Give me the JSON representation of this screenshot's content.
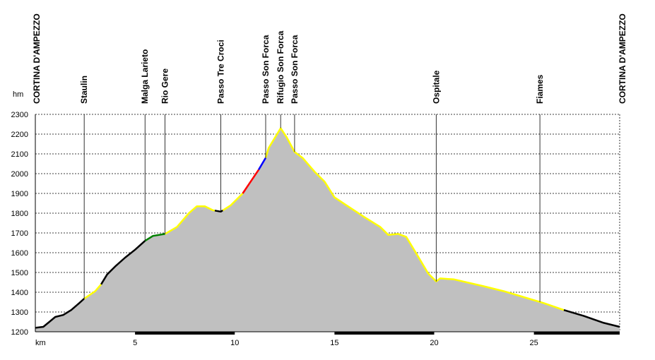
{
  "chart_data": {
    "type": "area",
    "ylabel": "hm",
    "xlabel": "km",
    "xlim": [
      0,
      29.3
    ],
    "ylim": [
      1200,
      2300
    ],
    "y_ticks": [
      1200,
      1300,
      1400,
      1500,
      1600,
      1700,
      1800,
      1900,
      2000,
      2100,
      2200,
      2300
    ],
    "x_ticks": [
      5,
      10,
      15,
      20,
      25
    ],
    "grid": true,
    "fill_color": "#c0c0c0",
    "profile": [
      [
        0.0,
        1220
      ],
      [
        0.4,
        1225
      ],
      [
        0.7,
        1250
      ],
      [
        1.0,
        1275
      ],
      [
        1.4,
        1285
      ],
      [
        1.8,
        1310
      ],
      [
        2.2,
        1345
      ],
      [
        2.45,
        1368
      ],
      [
        3.0,
        1405
      ],
      [
        3.3,
        1440
      ],
      [
        3.6,
        1490
      ],
      [
        4.0,
        1530
      ],
      [
        4.5,
        1575
      ],
      [
        5.0,
        1615
      ],
      [
        5.5,
        1660
      ],
      [
        5.9,
        1685
      ],
      [
        6.5,
        1695
      ],
      [
        7.1,
        1730
      ],
      [
        7.7,
        1800
      ],
      [
        8.1,
        1835
      ],
      [
        8.5,
        1835
      ],
      [
        8.9,
        1815
      ],
      [
        9.3,
        1808
      ],
      [
        9.8,
        1840
      ],
      [
        10.4,
        1900
      ],
      [
        10.8,
        1960
      ],
      [
        11.2,
        2020
      ],
      [
        11.55,
        2080
      ],
      [
        11.7,
        2130
      ],
      [
        12.0,
        2180
      ],
      [
        12.3,
        2230
      ],
      [
        12.6,
        2185
      ],
      [
        13.0,
        2110
      ],
      [
        13.4,
        2080
      ],
      [
        14.0,
        2010
      ],
      [
        14.5,
        1960
      ],
      [
        15.0,
        1880
      ],
      [
        15.6,
        1840
      ],
      [
        16.5,
        1780
      ],
      [
        17.3,
        1730
      ],
      [
        17.7,
        1690
      ],
      [
        18.2,
        1695
      ],
      [
        18.6,
        1680
      ],
      [
        19.2,
        1580
      ],
      [
        19.7,
        1495
      ],
      [
        20.1,
        1455
      ],
      [
        20.3,
        1470
      ],
      [
        21.0,
        1465
      ],
      [
        22.5,
        1430
      ],
      [
        23.5,
        1405
      ],
      [
        24.5,
        1375
      ],
      [
        25.5,
        1345
      ],
      [
        26.5,
        1310
      ],
      [
        27.5,
        1280
      ],
      [
        28.5,
        1245
      ],
      [
        29.3,
        1225
      ]
    ],
    "segments": [
      {
        "color": "#000000",
        "from": 0.0,
        "to": 2.45
      },
      {
        "color": "#ffff00",
        "from": 2.45,
        "to": 3.3
      },
      {
        "color": "#000000",
        "from": 3.3,
        "to": 5.5
      },
      {
        "color": "#008000",
        "from": 5.5,
        "to": 6.5
      },
      {
        "color": "#ffff00",
        "from": 6.5,
        "to": 9.0
      },
      {
        "color": "#000000",
        "from": 9.0,
        "to": 9.4
      },
      {
        "color": "#ffff00",
        "from": 9.4,
        "to": 10.4
      },
      {
        "color": "#ff0000",
        "from": 10.4,
        "to": 11.2
      },
      {
        "color": "#0000ff",
        "from": 11.2,
        "to": 11.55
      },
      {
        "color": "#ffff00",
        "from": 11.55,
        "to": 26.5
      },
      {
        "color": "#000000",
        "from": 26.5,
        "to": 29.3
      }
    ],
    "waypoints": [
      {
        "name": "CORTINA D'AMPEZZO",
        "km": 0.0
      },
      {
        "name": "Staulin",
        "km": 2.45
      },
      {
        "name": "Malga Larieto",
        "km": 5.5
      },
      {
        "name": "Rio Gere",
        "km": 6.5
      },
      {
        "name": "Passo Tre Croci",
        "km": 9.3
      },
      {
        "name": "Passo Son Forca",
        "km": 11.55
      },
      {
        "name": "Rifugio Son Forca",
        "km": 12.3
      },
      {
        "name": "Passo Son Forca",
        "km": 13.0
      },
      {
        "name": "Ospitale",
        "km": 20.1
      },
      {
        "name": "Fiames",
        "km": 25.3
      },
      {
        "name": "CORTINA D'AMPEZZO",
        "km": 29.3
      }
    ]
  }
}
